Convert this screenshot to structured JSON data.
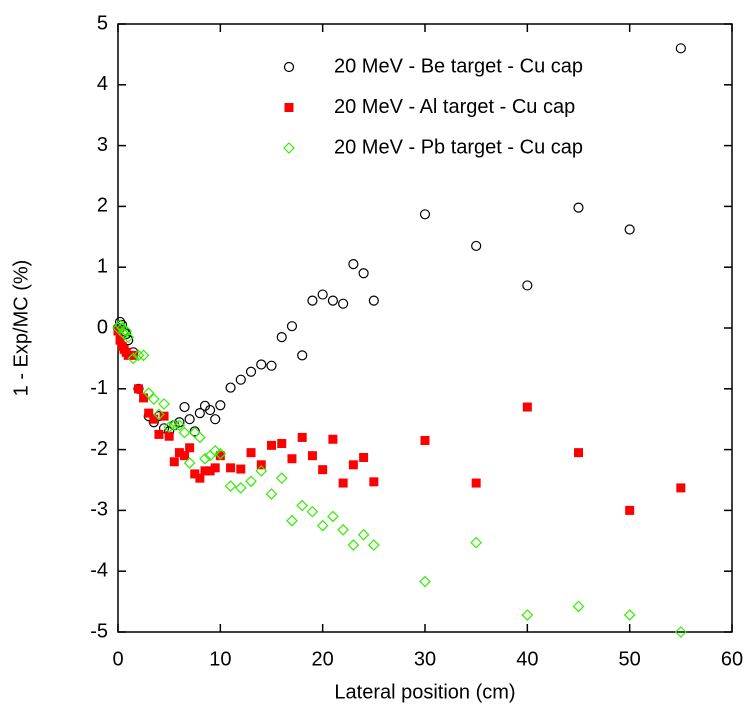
{
  "chart_data": {
    "type": "scatter",
    "xlabel": "Lateral position (cm)",
    "ylabel": "1 - Exp/MC (%)",
    "xlim": [
      0,
      60
    ],
    "xticks": [
      0,
      10,
      20,
      30,
      40,
      50,
      60
    ],
    "ylim": [
      -5,
      5
    ],
    "yticks": [
      -5,
      -4,
      -3,
      -2,
      -1,
      0,
      1,
      2,
      3,
      4,
      5
    ],
    "legend": "upper right",
    "series": [
      {
        "name": "20 MeV - Be target - Cu cap",
        "color": "#000000",
        "marker": "circle",
        "x": [
          0,
          0.2,
          0.4,
          0.6,
          0.8,
          1,
          1.5,
          2,
          3,
          3.5,
          4,
          4.5,
          5,
          5.5,
          6,
          6.5,
          7,
          7.5,
          8,
          8.5,
          9,
          9.5,
          10,
          11,
          12,
          13,
          14,
          15,
          16,
          17,
          18,
          19,
          20,
          21,
          22,
          23,
          24,
          25,
          30,
          35,
          40,
          45,
          50,
          55
        ],
        "values": [
          0,
          0.1,
          0.05,
          -0.05,
          -0.1,
          -0.2,
          -0.4,
          -1.0,
          -1.45,
          -1.55,
          -1.45,
          -1.65,
          -1.7,
          -1.6,
          -1.55,
          -1.3,
          -1.5,
          -1.7,
          -1.4,
          -1.28,
          -1.35,
          -1.5,
          -1.27,
          -0.98,
          -0.85,
          -0.72,
          -0.6,
          -0.62,
          -0.15,
          0.03,
          -0.45,
          0.45,
          0.55,
          0.45,
          0.4,
          1.05,
          0.9,
          0.45,
          1.87,
          1.35,
          0.7,
          1.98,
          1.62,
          4.6
        ]
      },
      {
        "name": "20 MeV - Al target - Cu cap",
        "color": "#ff0000",
        "marker": "square",
        "x": [
          0,
          0.2,
          0.4,
          0.6,
          0.8,
          1,
          1.5,
          2,
          2.5,
          3,
          3.5,
          4,
          4.5,
          5,
          5.5,
          6,
          6.5,
          7,
          7.5,
          8,
          8.5,
          9,
          9.5,
          10,
          11,
          12,
          13,
          14,
          15,
          16,
          17,
          18,
          19,
          20,
          21,
          22,
          23,
          24,
          25,
          30,
          35,
          40,
          45,
          50,
          55
        ],
        "values": [
          -0.05,
          -0.2,
          -0.3,
          -0.35,
          -0.4,
          -0.45,
          -0.45,
          -1.0,
          -1.15,
          -1.4,
          -1.5,
          -1.75,
          -1.45,
          -1.78,
          -2.2,
          -2.05,
          -2.1,
          -1.97,
          -2.4,
          -2.47,
          -2.35,
          -2.35,
          -2.3,
          -2.1,
          -2.3,
          -2.32,
          -2.05,
          -2.25,
          -1.93,
          -1.9,
          -2.15,
          -1.8,
          -2.1,
          -2.33,
          -1.83,
          -2.55,
          -2.25,
          -2.13,
          -2.53,
          -1.85,
          -2.55,
          -1.3,
          -2.05,
          -3.0,
          -2.63
        ]
      },
      {
        "name": "20 MeV - Pb target - Cu cap",
        "color": "#33ee00",
        "marker": "diamond",
        "x": [
          0,
          0.2,
          0.4,
          0.6,
          0.8,
          1,
          1.5,
          2,
          2.5,
          3,
          3.5,
          4,
          4.5,
          5,
          5.5,
          6,
          6.5,
          7,
          7.5,
          8,
          8.5,
          9,
          9.5,
          10,
          11,
          12,
          13,
          14,
          15,
          16,
          17,
          18,
          19,
          20,
          21,
          22,
          23,
          24,
          25,
          30,
          35,
          40,
          45,
          50,
          55
        ],
        "values": [
          0,
          0.05,
          0,
          -0.1,
          -0.05,
          -0.15,
          -0.5,
          -0.45,
          -0.45,
          -1.07,
          -1.17,
          -1.42,
          -1.25,
          -1.63,
          -1.6,
          -1.6,
          -1.72,
          -2.22,
          -1.72,
          -1.8,
          -2.15,
          -2.1,
          -2.02,
          -2.07,
          -2.6,
          -2.63,
          -2.52,
          -2.35,
          -2.73,
          -2.47,
          -3.17,
          -2.92,
          -3.02,
          -3.25,
          -3.1,
          -3.32,
          -3.57,
          -3.4,
          -3.57,
          -4.17,
          -3.53,
          -4.72,
          -4.58,
          -4.72,
          -5.0
        ]
      }
    ]
  }
}
